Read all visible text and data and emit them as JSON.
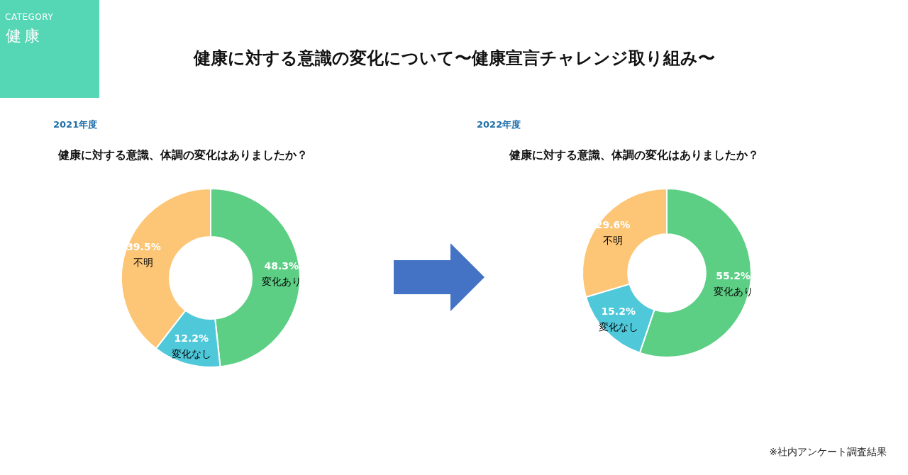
{
  "chart_data": [
    {
      "type": "other",
      "title": "健康に対する意識の変化について〜健康宣言チャレンジ取り組み〜",
      "annotations": [
        "CATEGORY",
        "健康",
        "※社内アンケート調査結果"
      ]
    },
    {
      "type": "donut",
      "title": "2021年度",
      "subtitle": "健康に対する意識、体調の変化はありましたか？",
      "categories": [
        "変化あり",
        "変化なし",
        "不明"
      ],
      "values": [
        48.3,
        12.2,
        39.5
      ],
      "colors": [
        "#5ccf85",
        "#4fc8da",
        "#fdc676"
      ],
      "value_labels": [
        "48.3%",
        "12.2%",
        "39.5%"
      ]
    },
    {
      "type": "donut",
      "title": "2022年度",
      "subtitle": "健康に対する意識、体調の変化はありましたか？",
      "categories": [
        "変化あり",
        "変化なし",
        "不明"
      ],
      "values": [
        55.2,
        15.2,
        29.6
      ],
      "colors": [
        "#5ccf85",
        "#4fc8da",
        "#fdc676"
      ],
      "value_labels": [
        "55.2%",
        "15.2%",
        "29.6%"
      ]
    }
  ]
}
